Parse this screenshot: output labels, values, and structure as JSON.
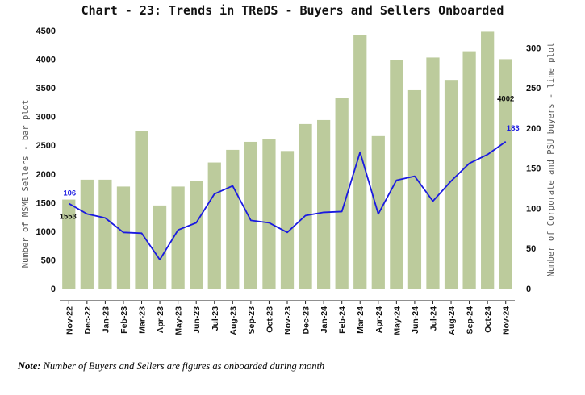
{
  "chart_data": {
    "type": "bar+line",
    "title": "Chart - 23: Trends in TReDS - Buyers and Sellers Onboarded",
    "categories": [
      "Nov-22",
      "Dec-22",
      "Jan-23",
      "Feb-23",
      "Mar-23",
      "Apr-23",
      "May-23",
      "Jun-23",
      "Jul-23",
      "Aug-23",
      "Sep-23",
      "Oct-23",
      "Nov-23",
      "Dec-23",
      "Jan-24",
      "Feb-24",
      "Mar-24",
      "Apr-24",
      "May-24",
      "Jun-24",
      "Jul-24",
      "Aug-24",
      "Sep-24",
      "Oct-24",
      "Nov-24"
    ],
    "series": [
      {
        "type": "bar",
        "axis": "left",
        "values": [
          1553,
          1900,
          1900,
          1780,
          2750,
          1450,
          1780,
          1880,
          2200,
          2420,
          2560,
          2610,
          2400,
          2870,
          2940,
          3320,
          4420,
          2660,
          3980,
          3460,
          4030,
          3640,
          4140,
          4480,
          4002
        ],
        "color": "#bccb9c"
      },
      {
        "type": "line",
        "axis": "right",
        "values": [
          106,
          93,
          88,
          70,
          69,
          36,
          73,
          82,
          118,
          128,
          85,
          82,
          70,
          91,
          95,
          96,
          170,
          93,
          135,
          140,
          109,
          134,
          156,
          167,
          183
        ],
        "color": "#1a1ae0"
      }
    ],
    "ylabel": "Number of MSME Sellers - bar plot",
    "y2label": "Number of Corporate and PSU buyers - line plot",
    "ylim": [
      0,
      4500
    ],
    "y2lim": [
      0,
      321.4
    ],
    "yticks": [
      "0",
      "500",
      "1000",
      "1500",
      "2000",
      "2500",
      "3000",
      "3500",
      "4000",
      "4500"
    ],
    "y2ticks": [
      "0",
      "50",
      "100",
      "150",
      "200",
      "250",
      "300"
    ],
    "data_labels": {
      "bar_first": "1553",
      "bar_last": "4002",
      "line_first": "106",
      "line_last": "183"
    },
    "grid": false
  },
  "note": {
    "prefix": "Note:",
    "text": " Number of Buyers and Sellers are figures as onboarded during month"
  }
}
